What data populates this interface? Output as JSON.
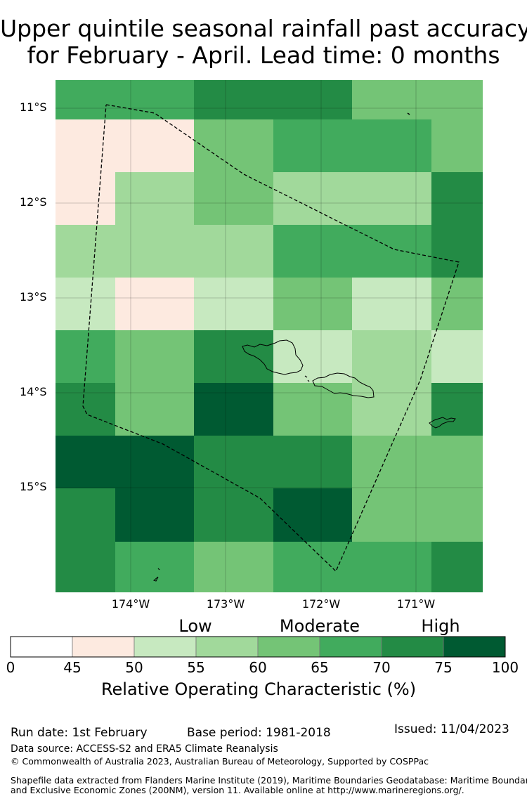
{
  "title": {
    "line1": "Upper quintile seasonal rainfall past accuracy",
    "line2": "for February - April. Lead time: 0 months"
  },
  "map": {
    "lat_labels": [
      "11°S",
      "12°S",
      "13°S",
      "14°S",
      "15°S"
    ],
    "lon_labels": [
      "174°W",
      "173°W",
      "172°W",
      "171°W"
    ],
    "grid_values_percent": [
      [
        65,
        65,
        70,
        70,
        60,
        60
      ],
      [
        45,
        45,
        60,
        65,
        65,
        60
      ],
      [
        45,
        55,
        60,
        55,
        55,
        70
      ],
      [
        55,
        55,
        55,
        65,
        65,
        70
      ],
      [
        50,
        45,
        50,
        60,
        50,
        60
      ],
      [
        65,
        60,
        70,
        50,
        55,
        50
      ],
      [
        70,
        60,
        75,
        60,
        55,
        70
      ],
      [
        75,
        75,
        70,
        70,
        60,
        60
      ],
      [
        70,
        75,
        70,
        75,
        60,
        60
      ],
      [
        70,
        65,
        60,
        65,
        65,
        70
      ]
    ],
    "boundary_style": "dashed"
  },
  "colorbar": {
    "categories": [
      "Low",
      "Moderate",
      "High"
    ],
    "ticks": [
      "0",
      "45",
      "50",
      "55",
      "60",
      "65",
      "70",
      "75",
      "100"
    ],
    "bins": [
      {
        "from": 0,
        "to": 45,
        "color": "#ffffff"
      },
      {
        "from": 45,
        "to": 50,
        "color": "#fdeae0"
      },
      {
        "from": 50,
        "to": 55,
        "color": "#c7e9c0"
      },
      {
        "from": 55,
        "to": 60,
        "color": "#a1d99b"
      },
      {
        "from": 60,
        "to": 65,
        "color": "#74c476"
      },
      {
        "from": 65,
        "to": 70,
        "color": "#41ab5d"
      },
      {
        "from": 70,
        "to": 75,
        "color": "#238b45"
      },
      {
        "from": 75,
        "to": 100,
        "color": "#005a32"
      }
    ],
    "title": "Relative Operating Characteristic (%)"
  },
  "footer": {
    "run_date": "Run date: 1st February",
    "base_period": "Base period: 1981-2018",
    "issued": "Issued: 11/04/2023",
    "data_source": "Data source: ACCESS-S2 and ERA5 Climate Reanalysis",
    "copyright": "© Commonwealth of Australia 2023, Australian Bureau of Meteorology, Supported by COSPPac",
    "shapefile_line1": "Shapefile data extracted from Flanders Marine Institute (2019), Maritime Boundaries Geodatabase: Maritime Boundaries",
    "shapefile_line2": "and Exclusive Economic Zones (200NM), version 11. Available online at http://www.marineregions.org/."
  }
}
